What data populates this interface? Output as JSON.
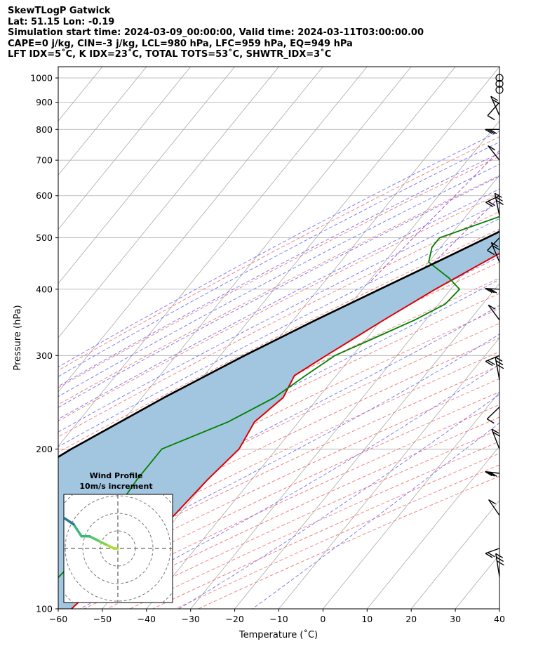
{
  "header": {
    "line1": "SkewTLogP Gatwick",
    "line2": "Lat: 51.15   Lon: -0.19",
    "line3": "Simulation start time: 2024-03-09_00:00:00, Valid time: 2024-03-11T03:00:00.00",
    "line4": "CAPE=0 j/kg, CIN=-3 j/kg, LCL=980 hPa, LFC=959 hPa, EQ=949 hPa",
    "line5": "LFT IDX=5˚C, K IDX=23˚C, TOTAL TOTS=53˚C, SHWTR_IDX=3˚C"
  },
  "chart_data": {
    "type": "line",
    "subtype": "skew-t log-p",
    "xlabel": "Temperature (˚C)",
    "ylabel": "Pressure (hPa)",
    "xlim": [
      -60,
      40
    ],
    "ylim": [
      1050,
      100
    ],
    "y_scale": "log",
    "x_ticks": [
      -60,
      -50,
      -40,
      -30,
      -20,
      -10,
      0,
      10,
      20,
      30,
      40
    ],
    "x_tick_labels": [
      "−60",
      "−50",
      "−40",
      "−30",
      "−20",
      "−10",
      "0",
      "10",
      "20",
      "30",
      "40"
    ],
    "y_ticks": [
      100,
      200,
      300,
      400,
      500,
      600,
      700,
      800,
      900,
      1000
    ],
    "y_tick_labels": [
      "100",
      "200",
      "300",
      "400",
      "500",
      "600",
      "700",
      "800",
      "900",
      "1000"
    ],
    "grid": true,
    "colors": {
      "temperature": "#e00000",
      "dewpoint": "#008000",
      "parcel": "#000000",
      "shade": "#a2c6e0",
      "dry_adiabat": "#f07070",
      "moist_adiabat": "#6a6af0",
      "mixing_ratio": "#a040c0",
      "isotherm": "#aaaaaa"
    },
    "series": [
      {
        "key": "temperature",
        "pressure": [
          1000,
          975,
          950,
          925,
          900,
          850,
          800,
          750,
          700,
          650,
          600,
          550,
          500,
          450,
          400,
          350,
          300,
          275,
          250,
          225,
          200,
          175,
          150,
          125,
          100
        ],
        "temperature": [
          8,
          7.5,
          6,
          4.5,
          3,
          0,
          -2.5,
          -5,
          -7.5,
          -11,
          -14.5,
          -18.5,
          -22,
          -27.5,
          -33.5,
          -39.5,
          -46,
          -49.5,
          -48,
          -50,
          -48.5,
          -50,
          -51,
          -54,
          -57
        ]
      },
      {
        "key": "dewpoint",
        "pressure": [
          1000,
          975,
          950,
          925,
          900,
          850,
          800,
          750,
          700,
          650,
          600,
          550,
          500,
          480,
          450,
          420,
          400,
          375,
          350,
          325,
          300,
          275,
          250,
          225,
          200,
          175,
          150,
          125,
          100
        ],
        "temperature": [
          8,
          7.5,
          7,
          5.5,
          3.5,
          0,
          -3,
          -6.5,
          -10.5,
          -17,
          -24,
          -32,
          -42,
          -42,
          -40,
          -32.5,
          -28,
          -28.5,
          -32.5,
          -38,
          -44,
          -47,
          -50,
          -56,
          -66,
          -66,
          -65,
          -65,
          -67
        ]
      },
      {
        "key": "parcel",
        "pressure": [
          990,
          960,
          930,
          900,
          850,
          800,
          750,
          700,
          650,
          600,
          550,
          500,
          450,
          400,
          350,
          300,
          250,
          200,
          150,
          100
        ],
        "temperature": [
          8,
          6.5,
          4.9,
          3.5,
          0.3,
          -3.1,
          -6.7,
          -10.6,
          -15.0,
          -19.8,
          -25.2,
          -31.3,
          -38.2,
          -46.1,
          -54.9,
          -64.5,
          -75.0,
          -86.5,
          -99.2,
          -113.9
        ]
      }
    ],
    "wind_barbs_pressure": [
      1000,
      975,
      950,
      900,
      850,
      800,
      700,
      600,
      550,
      500,
      450,
      400,
      350,
      300,
      270,
      240,
      200,
      180,
      150,
      130,
      115
    ],
    "inset": {
      "title": "Wind Profile",
      "subtitle": "10m/s increment",
      "hodograph_u": [
        0,
        -1,
        -3,
        -5,
        -7,
        -9,
        -11,
        -14,
        -16,
        -19,
        -22,
        -26,
        -33
      ],
      "hodograph_v": [
        0,
        0,
        1,
        2,
        3,
        3,
        6,
        8,
        10,
        11,
        11,
        10,
        11
      ]
    }
  }
}
